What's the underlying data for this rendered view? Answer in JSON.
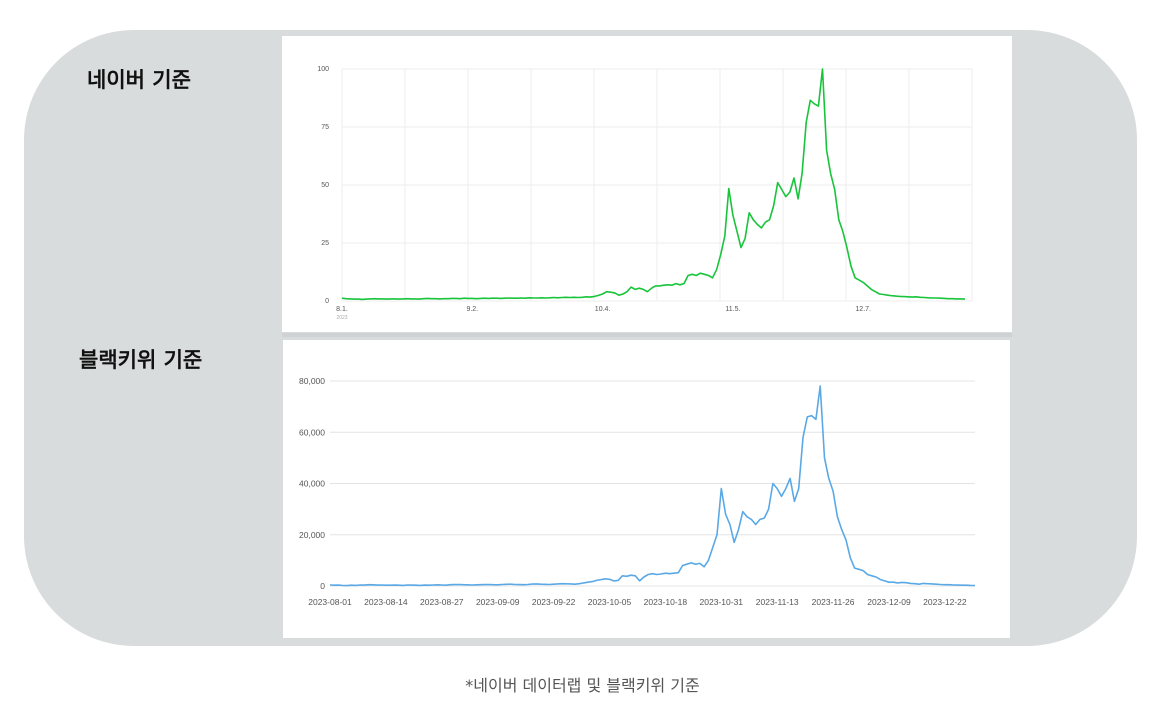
{
  "labels": {
    "naver": "네이버 기준",
    "blackkiwi": "블랙키위 기준"
  },
  "caption": "*네이버 데이터랩 및 블랙키위 기준",
  "chart_data": [
    {
      "type": "line",
      "line_color": "#18c43a",
      "grid": true,
      "ylim": [
        0,
        100
      ],
      "yticks": [
        "0",
        "25",
        "50",
        "75",
        "100"
      ],
      "xtick_labels": [
        "8.1.",
        "9.2.",
        "10.4.",
        "11.5.",
        "12.7."
      ],
      "xtick_sub": "2023",
      "xtick_index": [
        0,
        32,
        64,
        96,
        128
      ],
      "values": [
        1.2,
        1.0,
        0.9,
        0.8,
        0.8,
        0.7,
        0.8,
        0.9,
        1.0,
        0.9,
        0.9,
        0.8,
        0.9,
        0.9,
        0.8,
        0.9,
        1.0,
        0.9,
        0.9,
        0.8,
        1.0,
        1.1,
        1.0,
        1.0,
        0.9,
        1.0,
        1.0,
        1.1,
        1.1,
        1.0,
        1.2,
        1.1,
        1.1,
        1.0,
        1.1,
        1.2,
        1.1,
        1.2,
        1.2,
        1.1,
        1.2,
        1.3,
        1.2,
        1.2,
        1.3,
        1.2,
        1.4,
        1.3,
        1.3,
        1.4,
        1.3,
        1.4,
        1.5,
        1.4,
        1.5,
        1.6,
        1.5,
        1.6,
        1.5,
        1.6,
        1.8,
        1.7,
        2.0,
        2.4,
        3.0,
        4.0,
        3.8,
        3.5,
        2.5,
        3.0,
        4.0,
        6.0,
        5.0,
        5.5,
        5.0,
        4.0,
        5.5,
        6.5,
        6.5,
        6.8,
        7.0,
        6.8,
        7.5,
        7.0,
        7.5,
        11.0,
        11.5,
        11.0,
        12.0,
        11.5,
        11.0,
        10.0,
        13.5,
        20.0,
        28.0,
        48.5,
        37.0,
        30.0,
        23.0,
        27.0,
        38.0,
        35.0,
        33.0,
        31.5,
        34.0,
        35.0,
        41.0,
        51.0,
        48.0,
        45.0,
        47.0,
        53.0,
        44.0,
        55.0,
        77.0,
        86.5,
        85.0,
        84.0,
        100.0,
        65.0,
        55.0,
        48.0,
        35.0,
        30.0,
        23.0,
        15.0,
        10.0,
        9.0,
        8.0,
        6.5,
        5.0,
        4.0,
        3.0,
        2.8,
        2.5,
        2.3,
        2.1,
        2.0,
        1.9,
        1.8,
        1.7,
        1.8,
        1.6,
        1.5,
        1.4,
        1.3,
        1.3,
        1.2,
        1.1,
        1.0,
        1.0,
        0.9,
        0.9,
        0.8
      ]
    },
    {
      "type": "line",
      "line_color": "#5aa9e6",
      "grid": true,
      "ylim": [
        0,
        80000
      ],
      "yticks": [
        "0",
        "20,000",
        "40,000",
        "60,000",
        "80,000"
      ],
      "xtick_labels": [
        "2023-08-01",
        "2023-08-14",
        "2023-08-27",
        "2023-09-09",
        "2023-09-22",
        "2023-10-05",
        "2023-10-18",
        "2023-10-31",
        "2023-11-13",
        "2023-11-26",
        "2023-12-09",
        "2023-12-22"
      ],
      "xtick_index": [
        0,
        13,
        26,
        39,
        52,
        65,
        78,
        91,
        104,
        117,
        130,
        143
      ],
      "values": [
        400,
        300,
        350,
        200,
        150,
        300,
        250,
        400,
        350,
        500,
        450,
        350,
        400,
        300,
        300,
        350,
        300,
        250,
        400,
        350,
        300,
        250,
        350,
        300,
        400,
        450,
        400,
        300,
        500,
        550,
        600,
        500,
        450,
        400,
        450,
        500,
        550,
        600,
        500,
        450,
        600,
        650,
        700,
        600,
        550,
        500,
        600,
        750,
        800,
        700,
        650,
        600,
        700,
        800,
        900,
        850,
        800,
        700,
        900,
        1200,
        1500,
        1700,
        2200,
        2500,
        2800,
        2600,
        2000,
        2200,
        4000,
        3800,
        4200,
        4000,
        2000,
        3500,
        4500,
        4800,
        4500,
        4700,
        5000,
        4800,
        5000,
        5200,
        8000,
        8500,
        9000,
        8500,
        8800,
        7500,
        10000,
        15000,
        20000,
        38000,
        28000,
        24000,
        17000,
        22000,
        29000,
        27000,
        26000,
        24000,
        26000,
        26500,
        30000,
        40000,
        38000,
        35000,
        38000,
        42000,
        33000,
        38000,
        58000,
        66000,
        66500,
        65000,
        78000,
        50000,
        42000,
        37000,
        27000,
        22000,
        18000,
        11000,
        7000,
        6500,
        6000,
        4500,
        4000,
        3500,
        2500,
        2000,
        1500,
        1500,
        1200,
        1400,
        1300,
        1000,
        900,
        700,
        1000,
        900,
        800,
        700,
        600,
        500,
        500,
        400,
        350,
        300,
        300,
        250,
        200
      ]
    }
  ]
}
